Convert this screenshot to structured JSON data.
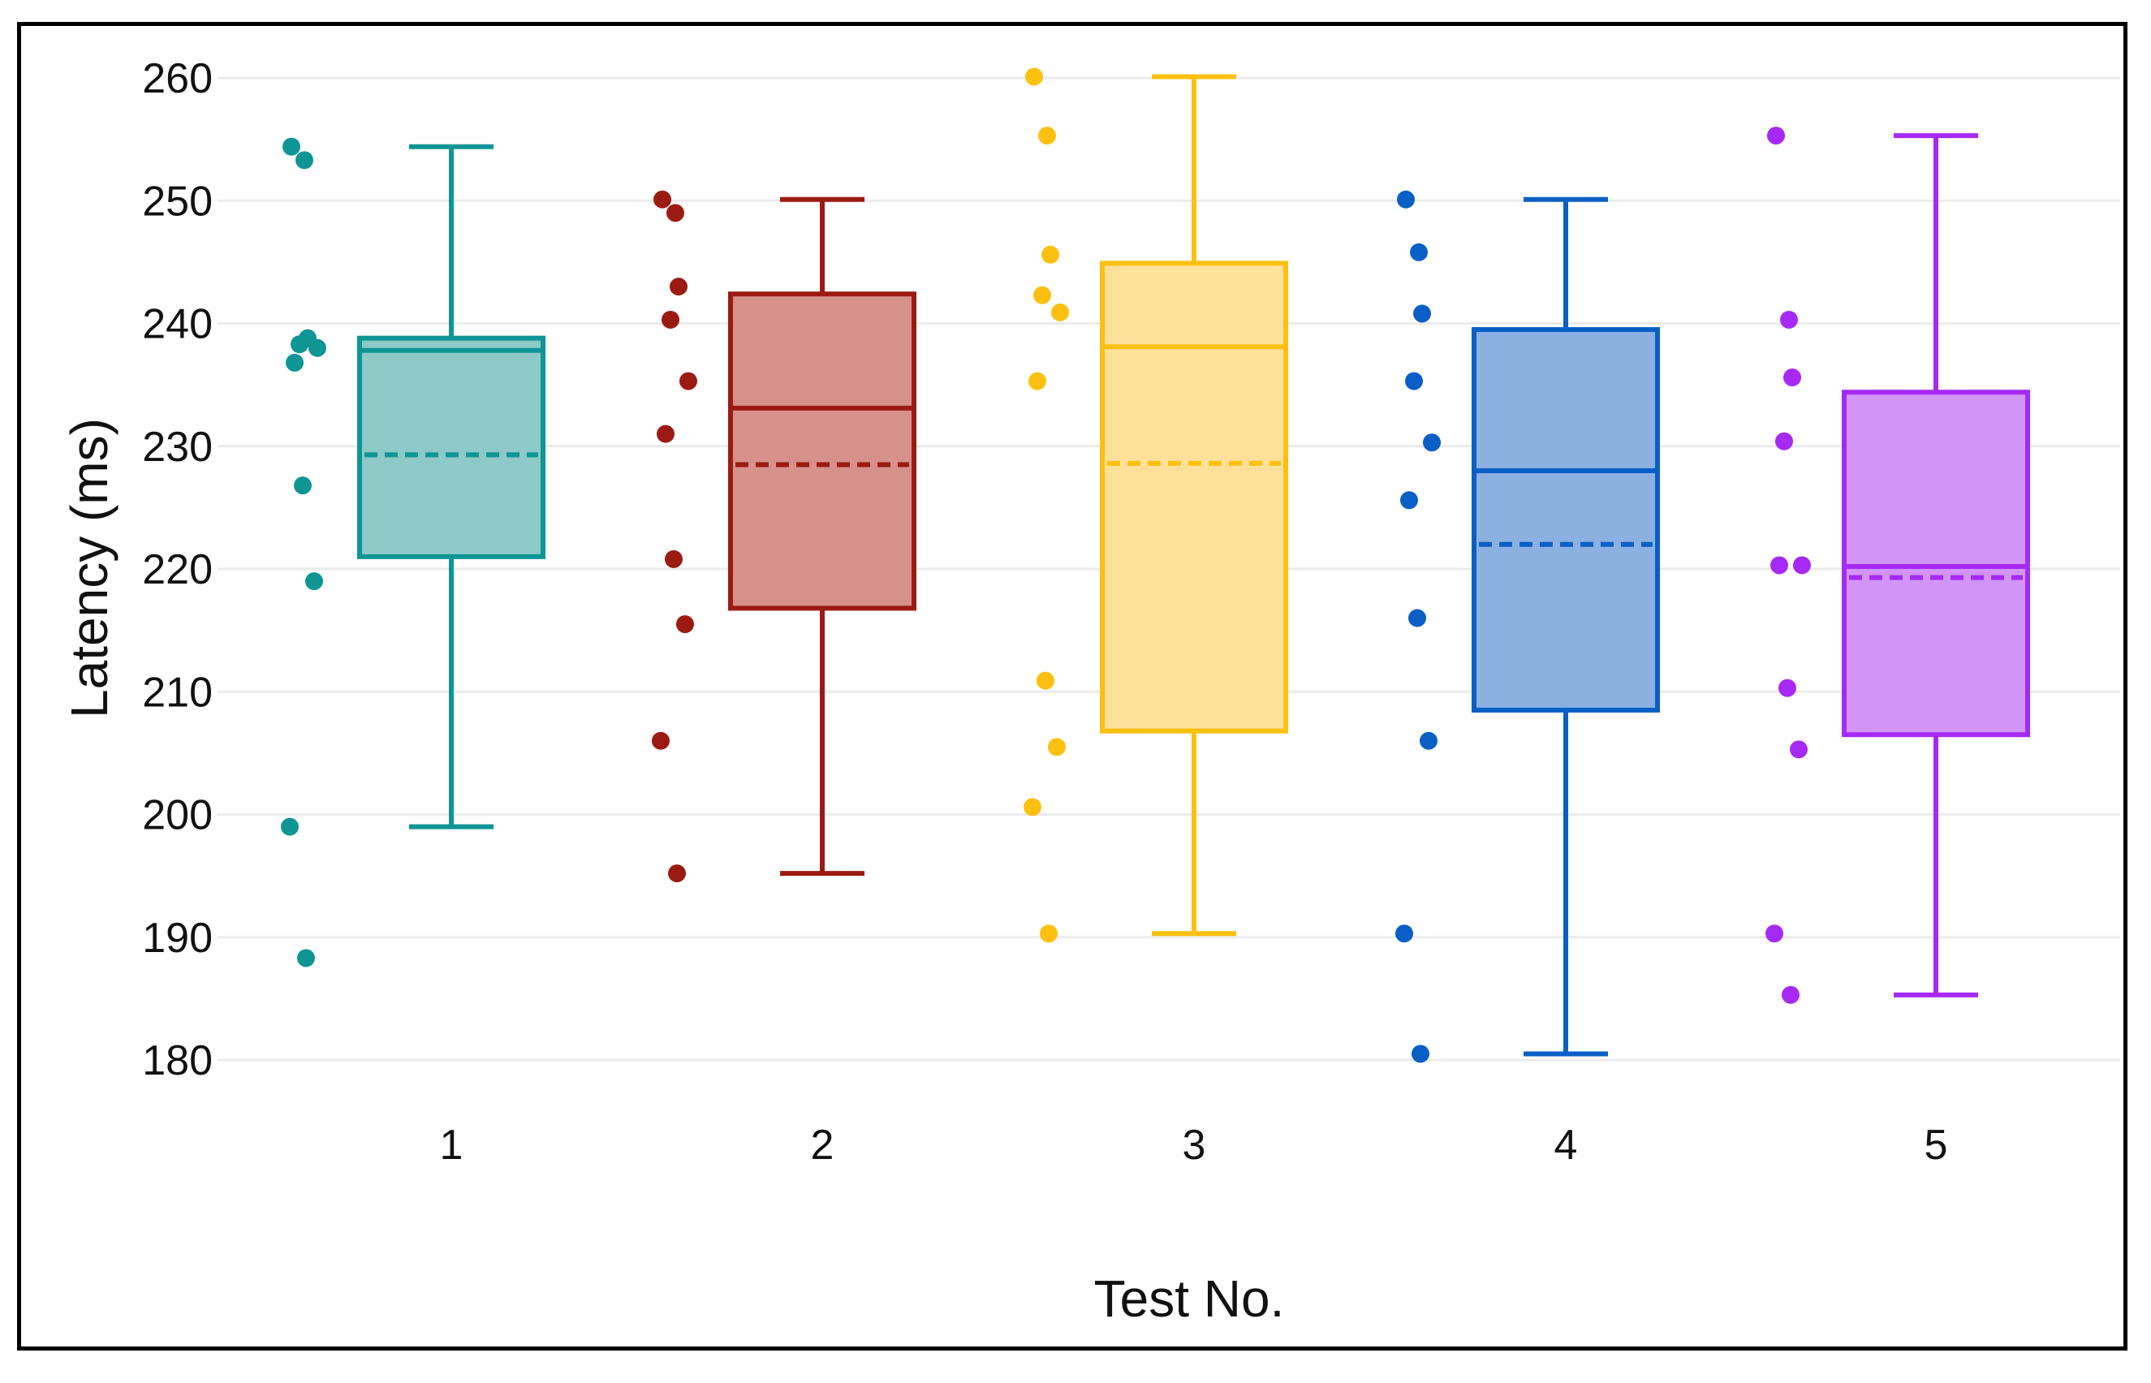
{
  "chart_data": {
    "type": "box",
    "title": "",
    "xlabel": "Test No.",
    "ylabel": "Latency (ms)",
    "ylim": [
      180,
      260
    ],
    "yticks": [
      180,
      190,
      200,
      210,
      220,
      230,
      240,
      250,
      260
    ],
    "grid": true,
    "legend": "none",
    "mean_line": "dashed",
    "categories": [
      "1",
      "2",
      "3",
      "4",
      "5"
    ],
    "series": [
      {
        "name": "1",
        "color": "#0e9594",
        "fill": "#8dc9c6",
        "whisker_low": 199,
        "q1": 221,
        "median": 237.8,
        "q3": 238.8,
        "whisker_high": 254.4,
        "mean": 229.3,
        "points": [
          254.4,
          253.3,
          238.8,
          238.3,
          238.0,
          236.8,
          226.8,
          219.0,
          199.0,
          188.3
        ]
      },
      {
        "name": "2",
        "color": "#9b1b13",
        "fill": "#d6918c",
        "whisker_low": 195.2,
        "q1": 216.8,
        "median": 233.1,
        "q3": 242.4,
        "whisker_high": 250.1,
        "mean": 228.5,
        "points": [
          250.1,
          249.0,
          243.0,
          240.3,
          235.3,
          231.0,
          220.8,
          215.5,
          206.0,
          195.2
        ]
      },
      {
        "name": "3",
        "color": "#fcc010",
        "fill": "#fde19b",
        "whisker_low": 190.3,
        "q1": 206.8,
        "median": 238.1,
        "q3": 244.9,
        "whisker_high": 260.1,
        "mean": 228.6,
        "points": [
          260.1,
          255.3,
          245.6,
          242.3,
          240.9,
          235.3,
          210.9,
          205.5,
          200.6,
          190.3
        ]
      },
      {
        "name": "4",
        "color": "#0a5fc6",
        "fill": "#8cb1e1",
        "whisker_low": 180.5,
        "q1": 208.5,
        "median": 228.0,
        "q3": 239.5,
        "whisker_high": 250.1,
        "mean": 222.0,
        "points": [
          250.1,
          245.8,
          240.8,
          235.3,
          230.3,
          225.6,
          216.0,
          206.0,
          190.3,
          180.5
        ]
      },
      {
        "name": "5",
        "color": "#a62af3",
        "fill": "#d394f8",
        "whisker_low": 185.3,
        "q1": 206.5,
        "median": 220.2,
        "q3": 234.4,
        "whisker_high": 255.3,
        "mean": 219.3,
        "points": [
          255.3,
          240.3,
          235.6,
          230.4,
          220.3,
          220.3,
          210.3,
          205.3,
          190.3,
          185.3
        ]
      }
    ]
  }
}
